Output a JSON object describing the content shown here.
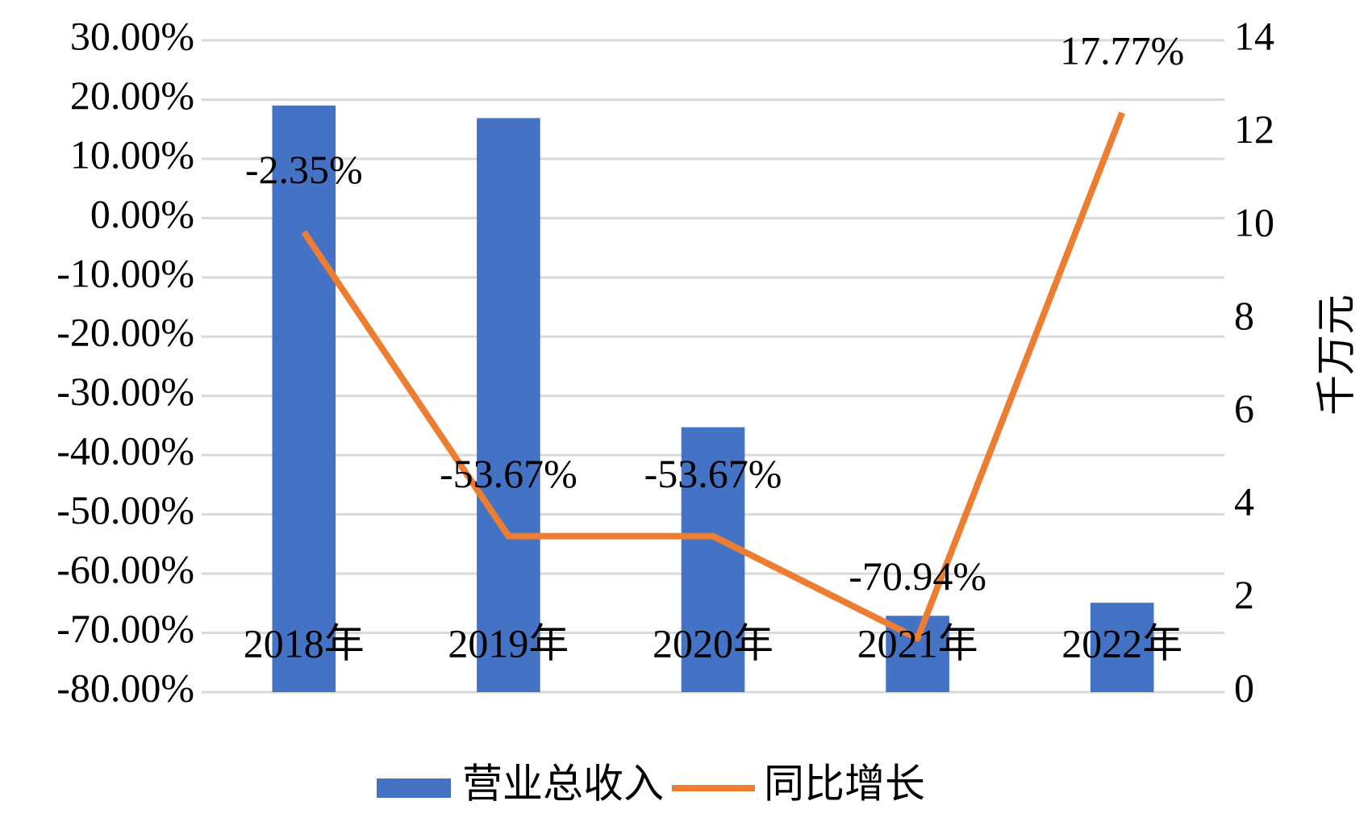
{
  "chart_data": {
    "type": "bar-line",
    "categories": [
      "2018年",
      "2019年",
      "2020年",
      "2021年",
      "2022年"
    ],
    "series": [
      {
        "name": "营业总收入",
        "type": "bar",
        "color": "#4472c4",
        "axis": "y2",
        "values": [
          12.6,
          12.33,
          5.69,
          1.64,
          1.92
        ]
      },
      {
        "name": "同比增长",
        "type": "line",
        "color": "#ed7d31",
        "axis": "y",
        "values": [
          -2.35,
          -53.67,
          -53.67,
          -70.94,
          17.77
        ],
        "value_labels": [
          "-2.35%",
          "-53.67%",
          "-53.67%",
          "-70.94%",
          "17.77%"
        ]
      }
    ],
    "ylim": [
      -80,
      30
    ],
    "yticks": [
      {
        "value": -80,
        "label": "-80.00%"
      },
      {
        "value": -70,
        "label": "-70.00%"
      },
      {
        "value": -60,
        "label": "-60.00%"
      },
      {
        "value": -50,
        "label": "-50.00%"
      },
      {
        "value": -40,
        "label": "-40.00%"
      },
      {
        "value": -30,
        "label": "-30.00%"
      },
      {
        "value": -20,
        "label": "-20.00%"
      },
      {
        "value": -10,
        "label": "-10.00%"
      },
      {
        "value": 0,
        "label": "0.00%"
      },
      {
        "value": 10,
        "label": "10.00%"
      },
      {
        "value": 20,
        "label": "20.00%"
      },
      {
        "value": 30,
        "label": "30.00%"
      }
    ],
    "y2lim": [
      0,
      14
    ],
    "y2ticks": [
      0,
      2,
      4,
      6,
      8,
      10,
      12,
      14
    ],
    "y2label": "千万元",
    "grid": true,
    "legend": "bottom"
  }
}
